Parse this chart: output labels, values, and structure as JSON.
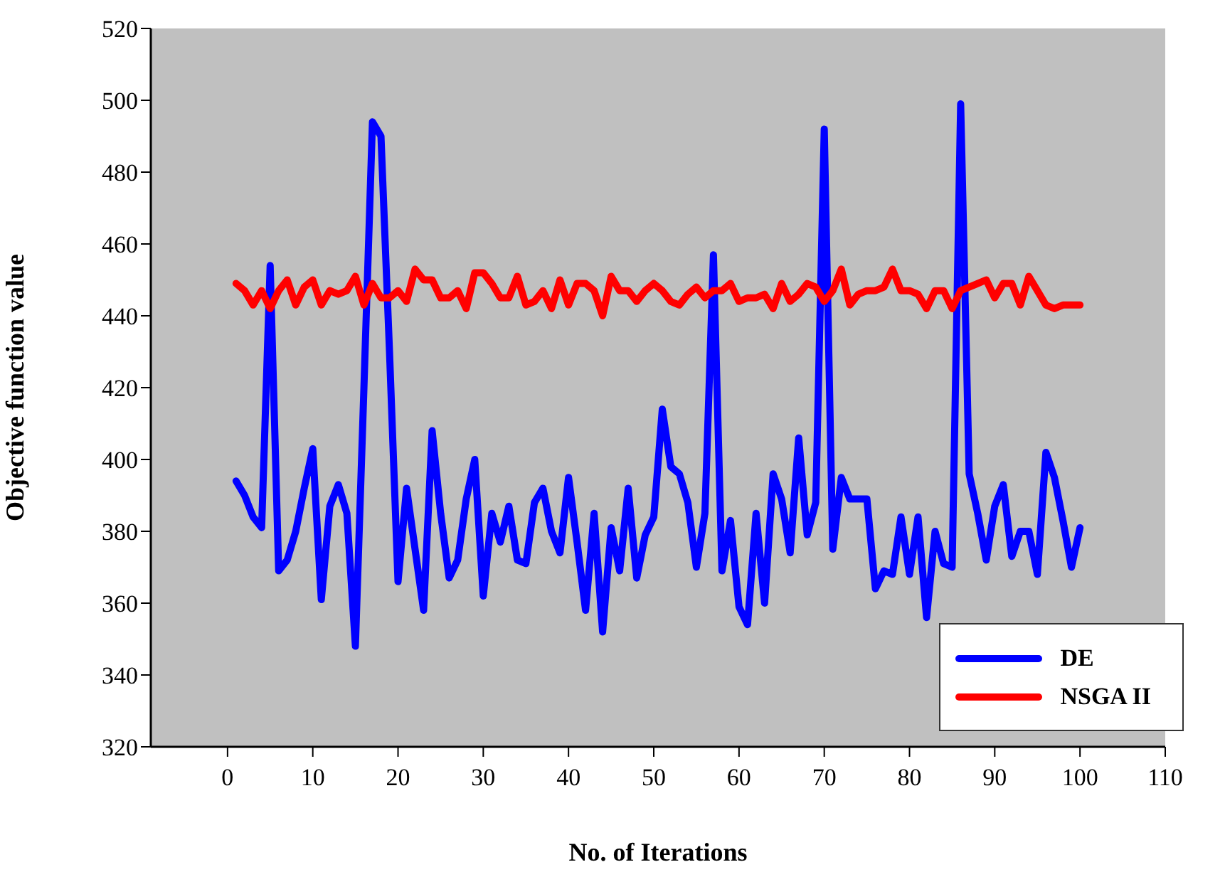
{
  "chart_data": {
    "type": "line",
    "xlabel": "No. of Iterations",
    "ylabel": "Objective function value",
    "x": [
      1,
      2,
      3,
      4,
      5,
      6,
      7,
      8,
      9,
      10,
      11,
      12,
      13,
      14,
      15,
      16,
      17,
      18,
      19,
      20,
      21,
      22,
      23,
      24,
      25,
      26,
      27,
      28,
      29,
      30,
      31,
      32,
      33,
      34,
      35,
      36,
      37,
      38,
      39,
      40,
      41,
      42,
      43,
      44,
      45,
      46,
      47,
      48,
      49,
      50,
      51,
      52,
      53,
      54,
      55,
      56,
      57,
      58,
      59,
      60,
      61,
      62,
      63,
      64,
      65,
      66,
      67,
      68,
      69,
      70,
      71,
      72,
      73,
      74,
      75,
      76,
      77,
      78,
      79,
      80,
      81,
      82,
      83,
      84,
      85,
      86,
      87,
      88,
      89,
      90,
      91,
      92,
      93,
      94,
      95,
      96,
      97,
      98,
      99,
      100
    ],
    "series": [
      {
        "name": "DE",
        "color": "#0000ff",
        "values": [
          394,
          390,
          384,
          381,
          454,
          369,
          372,
          380,
          392,
          403,
          361,
          387,
          393,
          385,
          348,
          420,
          494,
          490,
          430,
          366,
          392,
          375,
          358,
          408,
          385,
          367,
          372,
          389,
          400,
          362,
          385,
          377,
          387,
          372,
          371,
          388,
          392,
          380,
          374,
          395,
          377,
          358,
          385,
          352,
          381,
          369,
          392,
          367,
          379,
          384,
          414,
          398,
          396,
          388,
          370,
          385,
          457,
          369,
          383,
          359,
          354,
          385,
          360,
          396,
          389,
          374,
          406,
          379,
          388,
          492,
          375,
          395,
          389,
          389,
          389,
          364,
          369,
          368,
          384,
          368,
          384,
          356,
          380,
          371,
          370,
          499,
          396,
          385,
          372,
          387,
          393,
          373,
          380,
          380,
          368,
          402,
          395,
          383,
          370,
          381
        ]
      },
      {
        "name": "NSGA II",
        "color": "#ff0000",
        "values": [
          449,
          447,
          443,
          447,
          442,
          447,
          450,
          443,
          448,
          450,
          443,
          447,
          446,
          447,
          451,
          443,
          449,
          445,
          445,
          447,
          444,
          453,
          450,
          450,
          445,
          445,
          447,
          442,
          452,
          452,
          449,
          445,
          445,
          451,
          443,
          444,
          447,
          442,
          450,
          443,
          449,
          449,
          447,
          440,
          451,
          447,
          447,
          444,
          447,
          449,
          447,
          444,
          443,
          446,
          448,
          445,
          447,
          447,
          449,
          444,
          445,
          445,
          446,
          442,
          449,
          444,
          446,
          449,
          448,
          444,
          447,
          453,
          443,
          446,
          447,
          447,
          448,
          453,
          447,
          447,
          446,
          442,
          447,
          447,
          442,
          447,
          448,
          449,
          450,
          445,
          449,
          449,
          443,
          451,
          447,
          443,
          442,
          443,
          443,
          443
        ]
      }
    ],
    "xlim": [
      -9,
      110
    ],
    "xticks": [
      0,
      10,
      20,
      30,
      40,
      50,
      60,
      70,
      80,
      90,
      100,
      110
    ],
    "ylim": [
      320,
      520
    ],
    "yticks": [
      320,
      340,
      360,
      380,
      400,
      420,
      440,
      460,
      480,
      500,
      520
    ],
    "grid": false,
    "legend": "bottom right",
    "marker": "none",
    "line_style": "solid"
  }
}
